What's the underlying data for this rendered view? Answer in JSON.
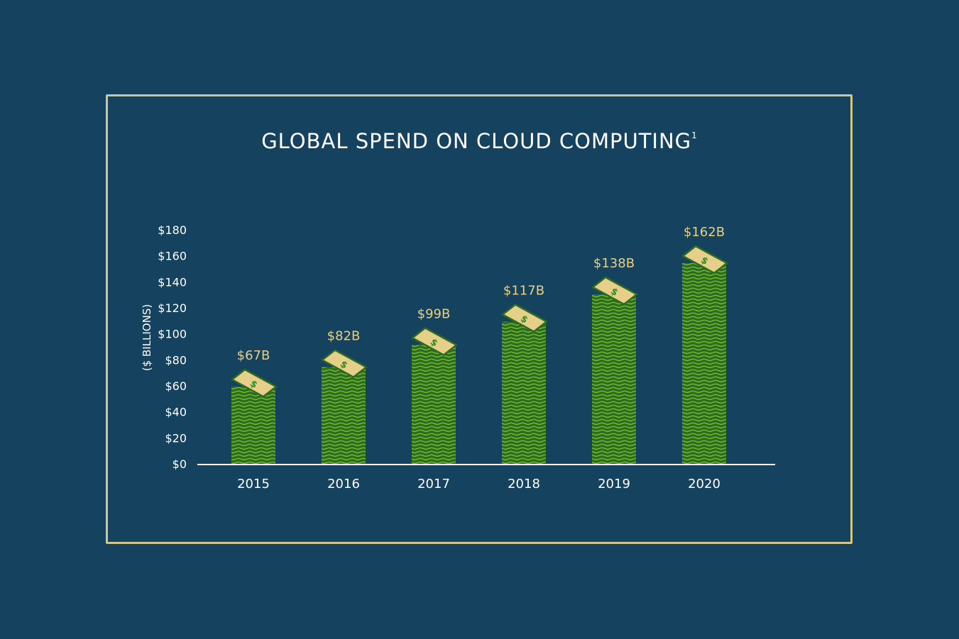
{
  "colors": {
    "background": "#15435f",
    "frame": "#d4c58a",
    "bar_dark": "#2e6a22",
    "bar_light": "#6fbf2a",
    "bill_top": "#e6d089",
    "label": "#e7cf85",
    "axis": "#ffffff"
  },
  "chart_data": {
    "type": "bar",
    "title": "GLOBAL SPEND ON CLOUD COMPUTING",
    "title_footnote": "1",
    "xlabel": "",
    "ylabel": "($ BILLIONS)",
    "categories": [
      "2015",
      "2016",
      "2017",
      "2018",
      "2019",
      "2020"
    ],
    "values": [
      67,
      82,
      99,
      117,
      138,
      162
    ],
    "data_labels": [
      "$67B",
      "$82B",
      "$99B",
      "$117B",
      "$138B",
      "$162B"
    ],
    "ylim": [
      0,
      180
    ],
    "yticks": [
      0,
      20,
      40,
      60,
      80,
      100,
      120,
      140,
      160,
      180
    ],
    "ytick_labels": [
      "$0",
      "$20",
      "$40",
      "$60",
      "$80",
      "$100",
      "$120",
      "$140",
      "$160",
      "$180"
    ],
    "bar_icon": "dollar-bill-stack-icon",
    "grid": false
  }
}
